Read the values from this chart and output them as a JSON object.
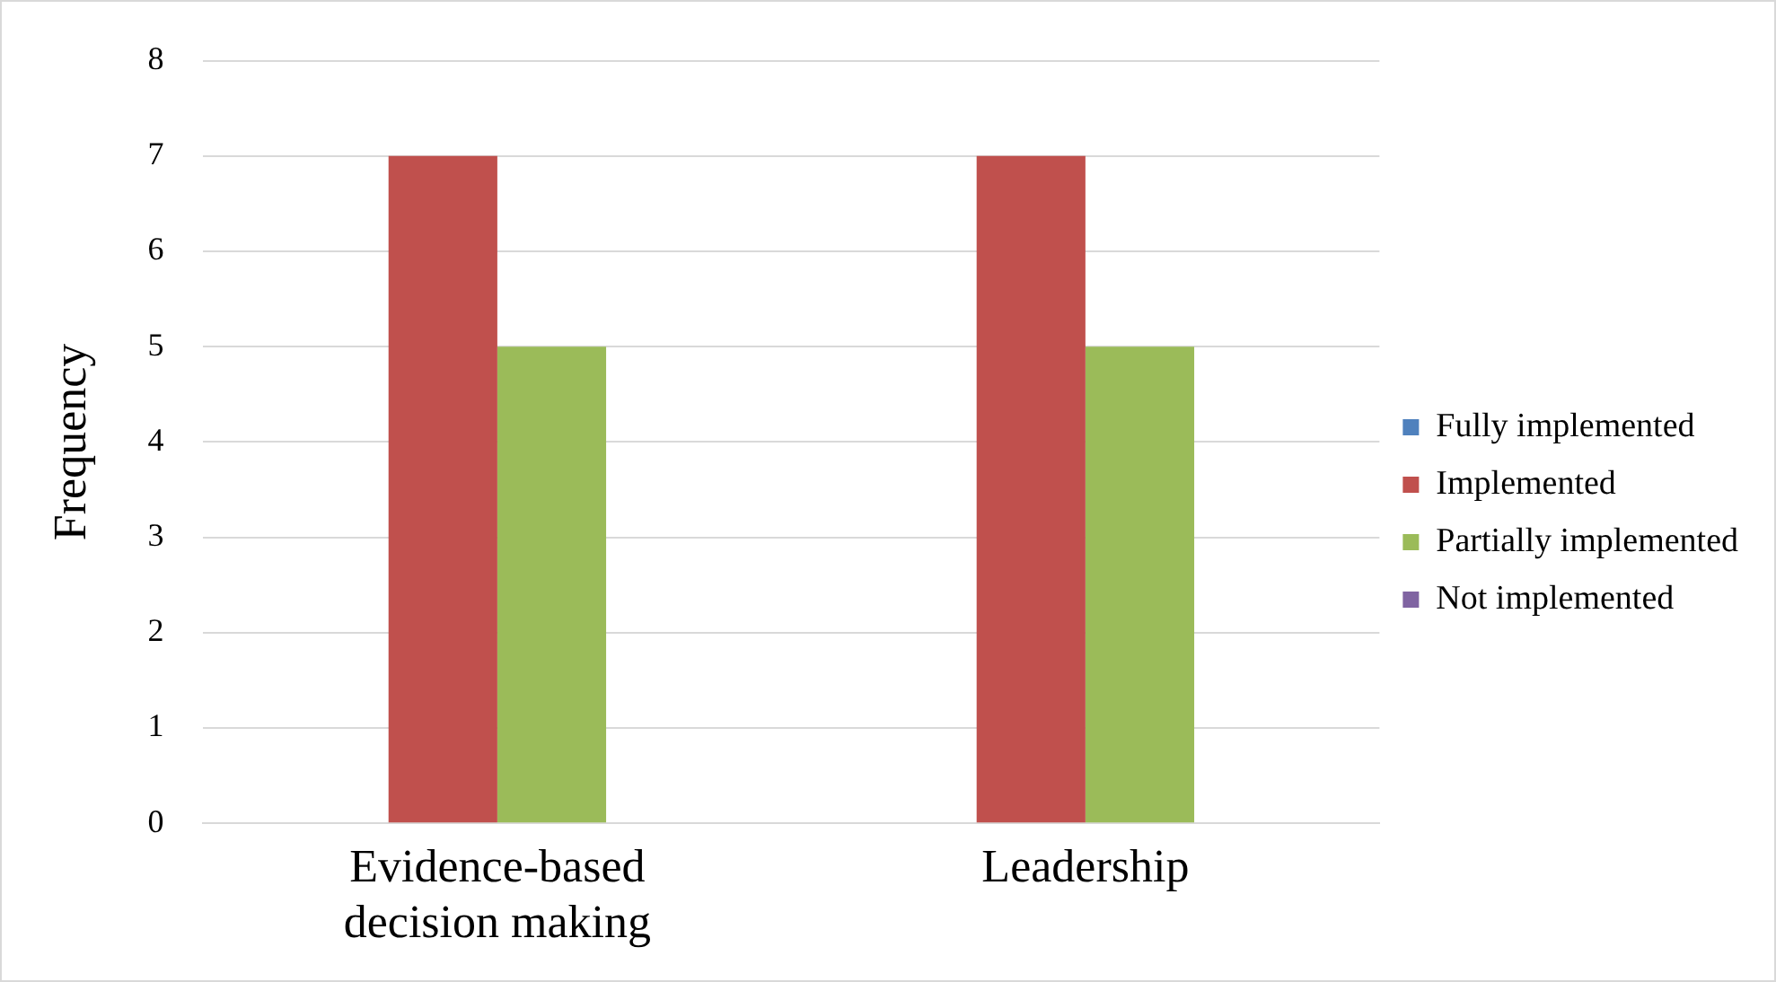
{
  "chart_data": {
    "type": "bar",
    "ylabel": "Frequency",
    "categories": [
      "Evidence-based decision making",
      "Leadership"
    ],
    "series": [
      {
        "name": "Fully implemented",
        "color": "#4f81bd",
        "values": [
          0,
          0
        ]
      },
      {
        "name": "Implemented",
        "color": "#c0504d",
        "values": [
          7,
          7
        ]
      },
      {
        "name": "Partially implemented",
        "color": "#9bbb59",
        "values": [
          5,
          5
        ]
      },
      {
        "name": "Not implemented",
        "color": "#8064a2",
        "values": [
          0,
          0
        ]
      }
    ],
    "ylim": [
      0,
      8
    ],
    "yticks": [
      0,
      1,
      2,
      3,
      4,
      5,
      6,
      7,
      8
    ],
    "grid": "y",
    "legend": "right"
  }
}
